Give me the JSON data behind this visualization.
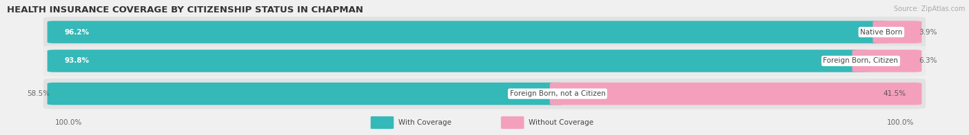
{
  "title": "HEALTH INSURANCE COVERAGE BY CITIZENSHIP STATUS IN CHAPMAN",
  "source": "Source: ZipAtlas.com",
  "categories": [
    "Native Born",
    "Foreign Born, Citizen",
    "Foreign Born, not a Citizen"
  ],
  "with_coverage": [
    96.2,
    93.8,
    58.5
  ],
  "without_coverage": [
    3.9,
    6.3,
    41.5
  ],
  "color_with": "#35b8b8",
  "color_without": "#f4a0bc",
  "color_with_light": "#b0dede",
  "color_without_light": "#fadadf",
  "bg_color": "#f0f0f0",
  "row_bg_odd": "#e2e2e2",
  "row_bg_even": "#ebebeb",
  "title_fontsize": 9.5,
  "label_fontsize": 7.5,
  "tick_fontsize": 7.5,
  "source_fontsize": 7.0,
  "legend_fontsize": 7.5,
  "pct_fontsize": 7.5
}
